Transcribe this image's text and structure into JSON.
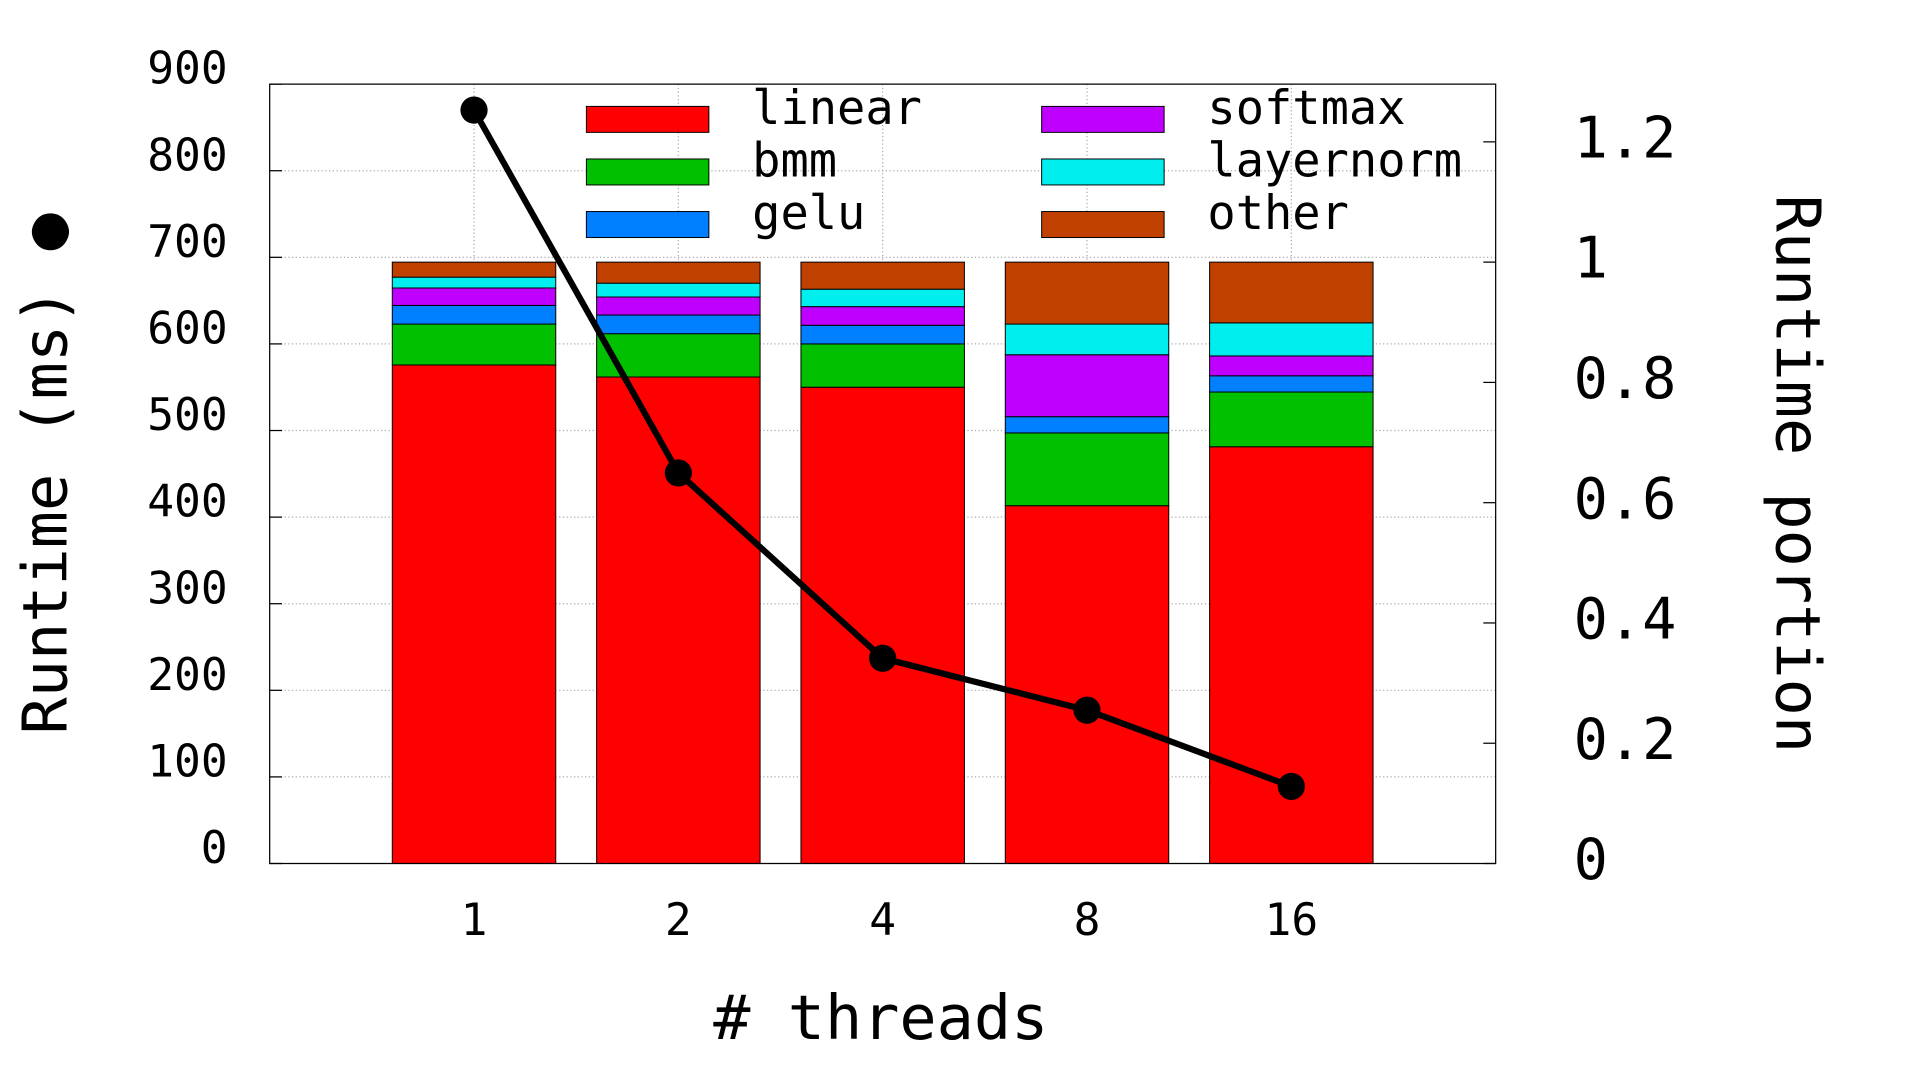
{
  "chart_data": {
    "type": "stacked-bar-line",
    "xlabel": "# threads",
    "ylabel": "Runtime (ms) ●",
    "y2label": "Runtime portion",
    "categories": [
      "1",
      "2",
      "4",
      "8",
      "16"
    ],
    "ylim": [
      0,
      900
    ],
    "yticks": [
      0,
      100,
      200,
      300,
      400,
      500,
      600,
      700,
      800,
      900
    ],
    "y2lim": [
      0,
      1.296
    ],
    "y2ticks": [
      0,
      0.2,
      0.4,
      0.6,
      0.8,
      1,
      1.2
    ],
    "grid": true,
    "legend": "top",
    "series": [
      {
        "name": "linear",
        "color": "#ff0000",
        "axis": "y2",
        "values": [
          0.829,
          0.809,
          0.792,
          0.595,
          0.693
        ]
      },
      {
        "name": "bmm",
        "color": "#00c000",
        "axis": "y2",
        "values": [
          0.068,
          0.072,
          0.072,
          0.121,
          0.091
        ]
      },
      {
        "name": "gelu",
        "color": "#0080ff",
        "axis": "y2",
        "values": [
          0.031,
          0.031,
          0.031,
          0.027,
          0.027
        ]
      },
      {
        "name": "softmax",
        "color": "#c000ff",
        "axis": "y2",
        "values": [
          0.029,
          0.03,
          0.031,
          0.103,
          0.033
        ]
      },
      {
        "name": "layernorm",
        "color": "#00eeee",
        "axis": "y2",
        "values": [
          0.018,
          0.023,
          0.029,
          0.051,
          0.055
        ]
      },
      {
        "name": "other",
        "color": "#c04000",
        "axis": "y2",
        "values": [
          0.025,
          0.035,
          0.045,
          0.103,
          0.101
        ]
      }
    ],
    "line": {
      "color": "#000000",
      "values": [
        870,
        451,
        237,
        177,
        89
      ]
    }
  }
}
